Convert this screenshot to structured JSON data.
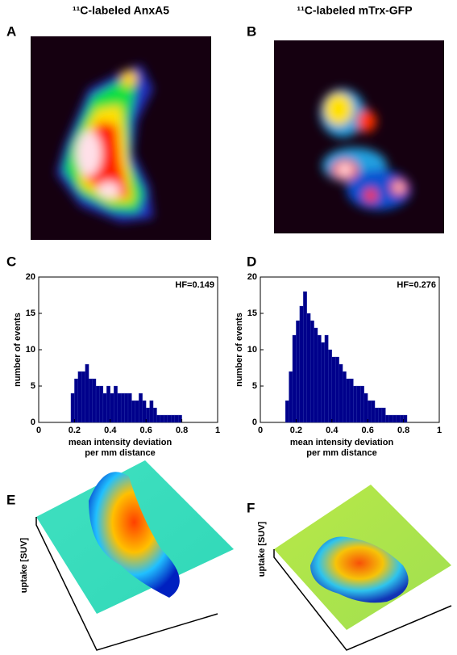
{
  "panel_titles": [
    "¹¹C-labeled AnxA5",
    "¹¹C-labeled mTrx-GFP"
  ],
  "panel_labels": [
    "A",
    "B",
    "C",
    "D",
    "E",
    "F"
  ],
  "surface_labels": [
    "uptake [SUV]",
    "uptake [SUV]"
  ],
  "chart_data": [
    {
      "type": "histogram",
      "annotation": "HF=0.149",
      "ylabel": "number of events",
      "xlabel": [
        "mean intensity deviation",
        "per mm distance"
      ],
      "color": "#00008b",
      "bins": [
        0.18,
        0.2,
        0.22,
        0.24,
        0.26,
        0.28,
        0.3,
        0.32,
        0.34,
        0.36,
        0.38,
        0.4,
        0.42,
        0.44,
        0.46,
        0.48,
        0.5,
        0.52,
        0.54,
        0.56,
        0.58,
        0.6,
        0.62,
        0.64,
        0.66,
        0.68,
        0.7,
        0.72,
        0.74,
        0.76,
        0.78,
        0.8
      ],
      "values": [
        4,
        6,
        7,
        7,
        8,
        6,
        6,
        5,
        5,
        4,
        5,
        4,
        5,
        4,
        4,
        4,
        4,
        3,
        3,
        4,
        3,
        2,
        3,
        2,
        1,
        1,
        1,
        1,
        1,
        1,
        1
      ],
      "xlim": [
        0,
        1
      ],
      "xticks": [
        0,
        0.2,
        0.4,
        0.6,
        0.8,
        1
      ],
      "ylim": [
        0,
        20
      ],
      "yticks": [
        0,
        5,
        10,
        15,
        20
      ]
    },
    {
      "type": "histogram",
      "annotation": "HF=0.276",
      "ylabel": "number of events",
      "xlabel": [
        "mean intensity deviation",
        "per mm distance"
      ],
      "color": "#00008b",
      "bins": [
        0.14,
        0.16,
        0.18,
        0.2,
        0.22,
        0.24,
        0.26,
        0.28,
        0.3,
        0.32,
        0.34,
        0.36,
        0.38,
        0.4,
        0.42,
        0.44,
        0.46,
        0.48,
        0.5,
        0.52,
        0.54,
        0.56,
        0.58,
        0.6,
        0.62,
        0.64,
        0.66,
        0.68,
        0.7,
        0.72,
        0.74,
        0.76,
        0.78,
        0.8,
        0.82
      ],
      "values": [
        3,
        7,
        12,
        14,
        16,
        18,
        15,
        14,
        13,
        12,
        11,
        12,
        10,
        9,
        9,
        8,
        7,
        6,
        6,
        5,
        5,
        5,
        4,
        3,
        3,
        2,
        2,
        2,
        1,
        1,
        1,
        1,
        1,
        1
      ],
      "xlim": [
        0,
        1
      ],
      "xticks": [
        0,
        0.2,
        0.4,
        0.6,
        0.8,
        1
      ],
      "ylim": [
        0,
        20
      ],
      "yticks": [
        0,
        5,
        10,
        15,
        20
      ]
    }
  ]
}
